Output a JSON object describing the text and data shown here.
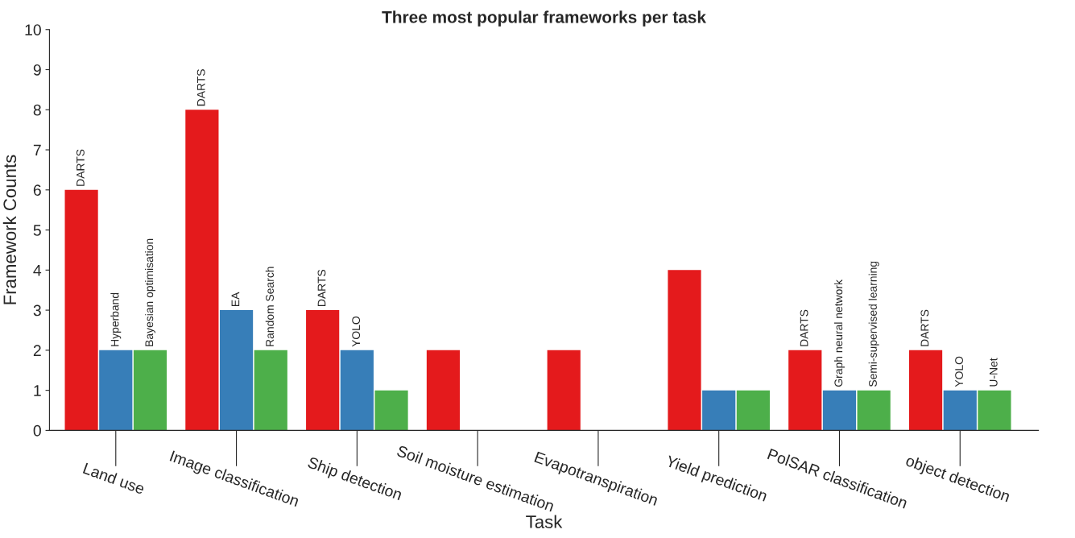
{
  "chart_data": {
    "type": "bar",
    "title": "Three most popular frameworks per task",
    "xlabel": "Task",
    "ylabel": "Framework Counts",
    "categories": [
      "Land use",
      "Image classification",
      "Ship detection",
      "Soil moisture estimation",
      "Evapotranspiration",
      "Yield prediction",
      "PolSAR classification",
      "object detection"
    ],
    "series": [
      {
        "color": "#e41a1c",
        "values": [
          6,
          8,
          3,
          2,
          2,
          4,
          2,
          2
        ],
        "value_labels": [
          "DARTS",
          "DARTS",
          "DARTS",
          null,
          null,
          null,
          "DARTS",
          "DARTS"
        ]
      },
      {
        "color": "#377eb8",
        "values": [
          2,
          3,
          2,
          null,
          null,
          1,
          1,
          1
        ],
        "value_labels": [
          "Hyperband",
          "EA",
          "YOLO",
          null,
          null,
          null,
          "Graph neural network",
          "YOLO"
        ]
      },
      {
        "color": "#4daf4a",
        "values": [
          2,
          2,
          1,
          null,
          null,
          1,
          1,
          1
        ],
        "value_labels": [
          "Bayesian optimisation",
          "Random Search",
          null,
          null,
          null,
          null,
          "Semi-supervised learning",
          "U-Net"
        ]
      }
    ],
    "ylim": [
      0,
      10
    ],
    "yticks": [
      0,
      1,
      2,
      3,
      4,
      5,
      6,
      7,
      8,
      9,
      10
    ],
    "grid": false,
    "legend": false
  }
}
